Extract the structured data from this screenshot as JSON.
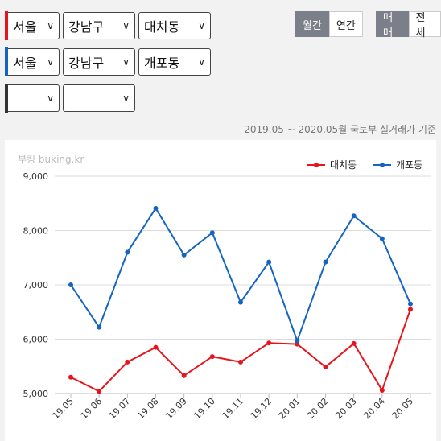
{
  "filters": {
    "row1": {
      "color": "#e8141c",
      "city": "서울",
      "district": "강남구",
      "dong": "대치동"
    },
    "row2": {
      "color": "#1565c0",
      "city": "서울",
      "district": "강남구",
      "dong": "개포동"
    },
    "row3": {
      "color": "#333333",
      "city": "",
      "district": ""
    }
  },
  "period_toggle": {
    "monthly": "월간",
    "yearly": "연간",
    "selected": "monthly"
  },
  "type_toggle": {
    "sale": "매매",
    "lease": "전세",
    "selected": "sale"
  },
  "basis_text": "2019.05 ~ 2020.05월 국토부 실거래가 기준",
  "watermark": "부킹 buking.kr",
  "chart_data": {
    "type": "line",
    "categories": [
      "19.05",
      "19.06",
      "19.07",
      "19.08",
      "19.09",
      "19.10",
      "19.11",
      "19.12",
      "20.01",
      "20.02",
      "20.03",
      "20.04",
      "20.05"
    ],
    "series": [
      {
        "name": "대치동",
        "color": "#e8141c",
        "values": [
          5300,
          5040,
          5580,
          5850,
          5330,
          5680,
          5580,
          5930,
          5910,
          5490,
          5920,
          5060,
          6550
        ]
      },
      {
        "name": "개포동",
        "color": "#1565c0",
        "values": [
          7000,
          6220,
          7600,
          8410,
          7550,
          7960,
          6680,
          7420,
          5970,
          7420,
          8270,
          7850,
          6650
        ]
      }
    ],
    "yticks": [
      "5,000",
      "6,000",
      "7,000",
      "8,000",
      "9,000"
    ],
    "ylim": [
      5000,
      9000
    ],
    "grid": true,
    "legend": "top-right"
  }
}
